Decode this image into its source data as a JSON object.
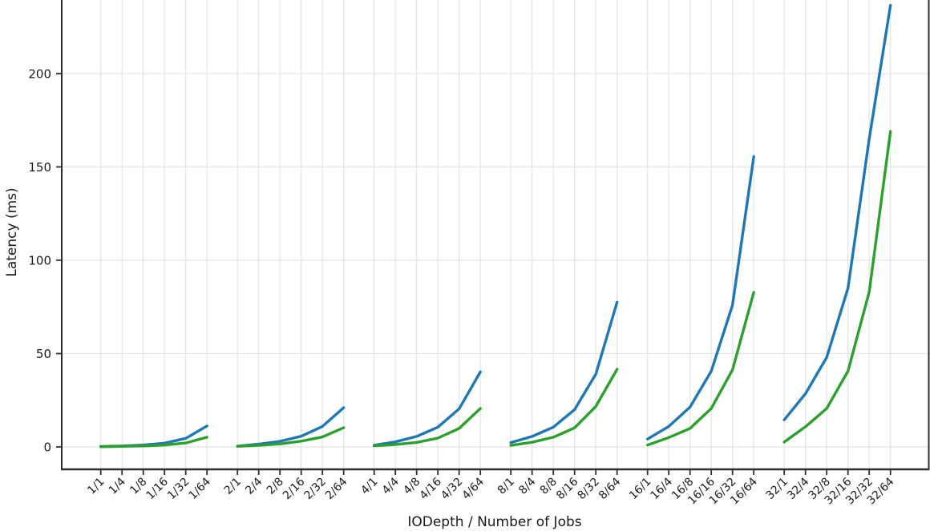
{
  "chart_data": {
    "type": "line",
    "title": "",
    "xlabel": "IODepth / Number of Jobs",
    "ylabel": "Latency (ms)",
    "legend": "none",
    "grid": true,
    "ylim_visible": [
      0,
      240
    ],
    "yticks": [
      0,
      50,
      100,
      150,
      200
    ],
    "grouping": {
      "num_groups": 6,
      "points_per_group": 6
    },
    "iodepth_groups": [
      "1",
      "2",
      "4",
      "8",
      "16",
      "32"
    ],
    "jobs_per_group": [
      "1",
      "4",
      "8",
      "16",
      "32",
      "64"
    ],
    "categories": [
      "1/1",
      "1/4",
      "1/8",
      "1/16",
      "1/32",
      "1/64",
      "2/1",
      "2/4",
      "2/8",
      "2/16",
      "2/32",
      "2/64",
      "4/1",
      "4/4",
      "4/8",
      "4/16",
      "4/32",
      "4/64",
      "8/1",
      "8/4",
      "8/8",
      "8/16",
      "8/32",
      "8/64",
      "16/1",
      "16/4",
      "16/8",
      "16/16",
      "16/32",
      "16/64",
      "32/1",
      "32/4",
      "32/8",
      "32/16",
      "32/32",
      "32/64"
    ],
    "series": [
      {
        "name": "blue-series",
        "color": "#1f77b4",
        "values": [
          0.2,
          0.5,
          1.0,
          2.0,
          4.6,
          11.2,
          0.4,
          1.5,
          3.0,
          5.7,
          11.0,
          21.0,
          0.9,
          2.7,
          5.6,
          10.6,
          20.4,
          40.2,
          2.3,
          5.6,
          10.6,
          20.0,
          39.0,
          77.5,
          4.2,
          11.0,
          21.3,
          40.6,
          76.0,
          155.5,
          14.5,
          28.5,
          48.0,
          85.0,
          165.0,
          236.5
        ]
      },
      {
        "name": "green-series",
        "color": "#2ca02c",
        "values": [
          0.1,
          0.3,
          0.5,
          1.0,
          2.1,
          5.2,
          0.3,
          0.8,
          1.6,
          3.1,
          5.3,
          10.3,
          0.6,
          1.3,
          2.4,
          4.7,
          9.9,
          20.6,
          0.8,
          2.5,
          5.2,
          10.2,
          21.7,
          41.6,
          1.0,
          5.0,
          9.9,
          20.6,
          41.3,
          82.8,
          2.6,
          10.8,
          20.6,
          40.6,
          83.0,
          169.0
        ]
      }
    ],
    "style": {
      "grid_color": "#e4e4e4",
      "spine_color": "#2e2e2e",
      "text_color": "#1a1a1a",
      "background": "#ffffff"
    }
  }
}
